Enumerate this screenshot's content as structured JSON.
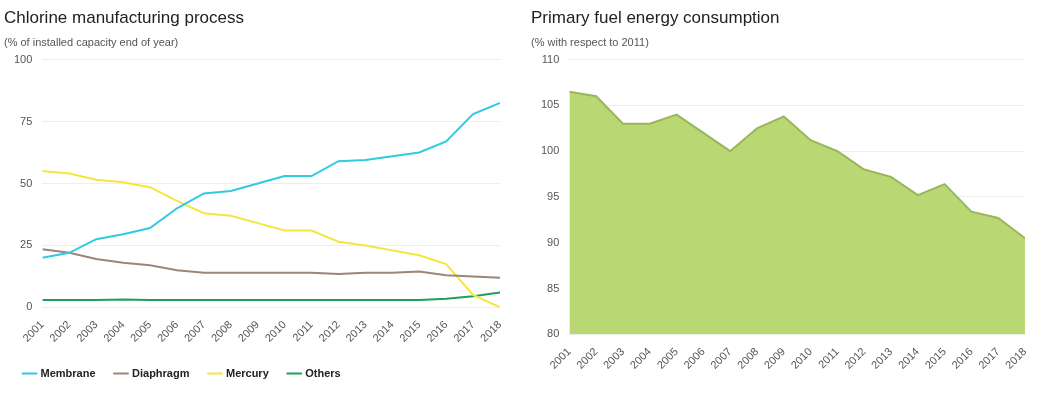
{
  "chart_data": [
    {
      "type": "line",
      "title": "Chlorine manufacturing process",
      "subtitle": "(% of installed capacity end of year)",
      "categories": [
        "2001",
        "2002",
        "2003",
        "2004",
        "2005",
        "2006",
        "2007",
        "2008",
        "2009",
        "2010",
        "2011",
        "2012",
        "2013",
        "2014",
        "2015",
        "2016",
        "2017",
        "2018"
      ],
      "series": [
        {
          "name": "Membrane",
          "color": "#2fcbe0",
          "values": [
            20,
            22,
            27.5,
            29.5,
            32,
            40,
            46,
            47,
            50,
            53,
            53,
            59,
            59.5,
            61,
            62.5,
            67,
            78,
            82.5
          ]
        },
        {
          "name": "Diaphragm",
          "color": "#9c857a",
          "values": [
            23.5,
            22,
            19.5,
            18,
            17,
            15,
            14,
            14,
            14,
            14,
            14,
            13.5,
            14,
            14,
            14.5,
            13,
            12.5,
            12
          ]
        },
        {
          "name": "Mercury",
          "color": "#f4e63c",
          "values": [
            55,
            54,
            51.5,
            50.5,
            48.5,
            43,
            38,
            37,
            34,
            31,
            31,
            26.5,
            25,
            23,
            21,
            17.5,
            5,
            0
          ]
        },
        {
          "name": "Others",
          "color": "#1fa05a",
          "values": [
            3,
            3,
            3,
            3.2,
            3,
            3,
            3,
            3,
            3,
            3,
            3,
            3,
            3,
            3,
            3,
            3.5,
            4.5,
            6
          ]
        }
      ],
      "ylim": [
        0,
        100
      ],
      "yticks": [
        0,
        25,
        50,
        75,
        100
      ],
      "grid": true,
      "legend": "bottom-left"
    },
    {
      "type": "area",
      "title": "Primary fuel energy consumption",
      "subtitle": "(% with respect to 2011)",
      "categories": [
        "2001",
        "2002",
        "2003",
        "2004",
        "2005",
        "2006",
        "2007",
        "2008",
        "2009",
        "2010",
        "2011",
        "2012",
        "2013",
        "2014",
        "2015",
        "2016",
        "2017",
        "2018"
      ],
      "values": [
        106.5,
        106,
        103,
        103,
        104,
        102,
        100,
        102.5,
        103.8,
        101.2,
        100,
        98,
        97.2,
        95.2,
        96.4,
        93.4,
        92.7,
        90.5
      ],
      "color": "#b5d66b",
      "ylim": [
        80,
        110
      ],
      "yticks": [
        80,
        85,
        90,
        95,
        100,
        105,
        110
      ],
      "grid": true
    }
  ]
}
